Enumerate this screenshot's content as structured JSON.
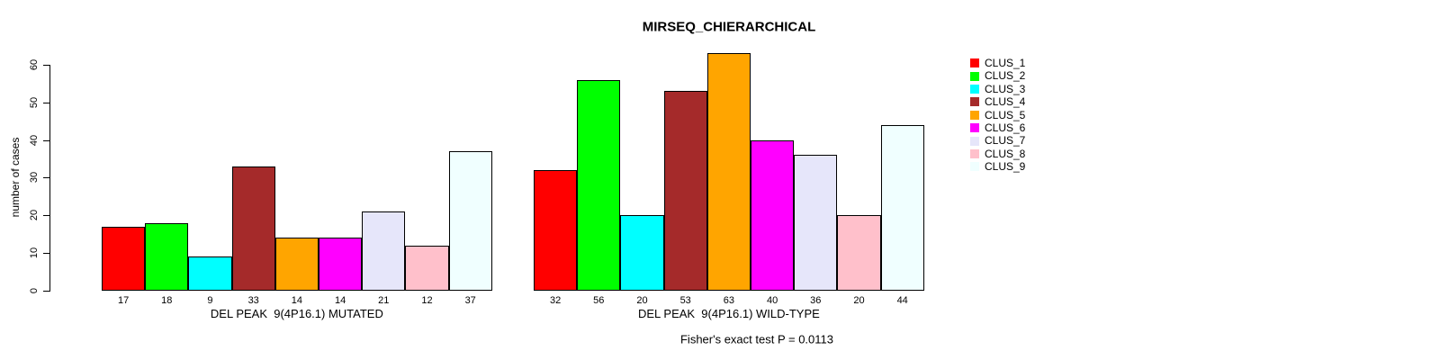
{
  "chart_data": {
    "type": "bar",
    "title": "MIRSEQ_CHIERARCHICAL",
    "subtitle": "Fisher's exact test P = 0.0113",
    "ylabel": "number of cases",
    "xlabel": "",
    "ylim": [
      0,
      60
    ],
    "yticks": [
      0,
      10,
      20,
      30,
      40,
      50,
      60
    ],
    "grid": false,
    "legend_position": "right",
    "bar_value_labels_shown": true,
    "categories": [
      "DEL PEAK  9(4P16.1) MUTATED",
      "DEL PEAK  9(4P16.1) WILD-TYPE"
    ],
    "series": [
      {
        "name": "CLUS_1",
        "color": "#ff0000",
        "values": [
          17,
          32
        ]
      },
      {
        "name": "CLUS_2",
        "color": "#00ff00",
        "values": [
          18,
          56
        ]
      },
      {
        "name": "CLUS_3",
        "color": "#00ffff",
        "values": [
          9,
          20
        ]
      },
      {
        "name": "CLUS_4",
        "color": "#a52a2a",
        "values": [
          33,
          53
        ]
      },
      {
        "name": "CLUS_5",
        "color": "#ffa500",
        "values": [
          14,
          63
        ]
      },
      {
        "name": "CLUS_6",
        "color": "#ff00ff",
        "values": [
          14,
          40
        ]
      },
      {
        "name": "CLUS_7",
        "color": "#e6e6fa",
        "values": [
          21,
          36
        ]
      },
      {
        "name": "CLUS_8",
        "color": "#ffc0cb",
        "values": [
          12,
          20
        ]
      },
      {
        "name": "CLUS_9",
        "color": "#f0ffff",
        "values": [
          37,
          44
        ]
      }
    ]
  }
}
